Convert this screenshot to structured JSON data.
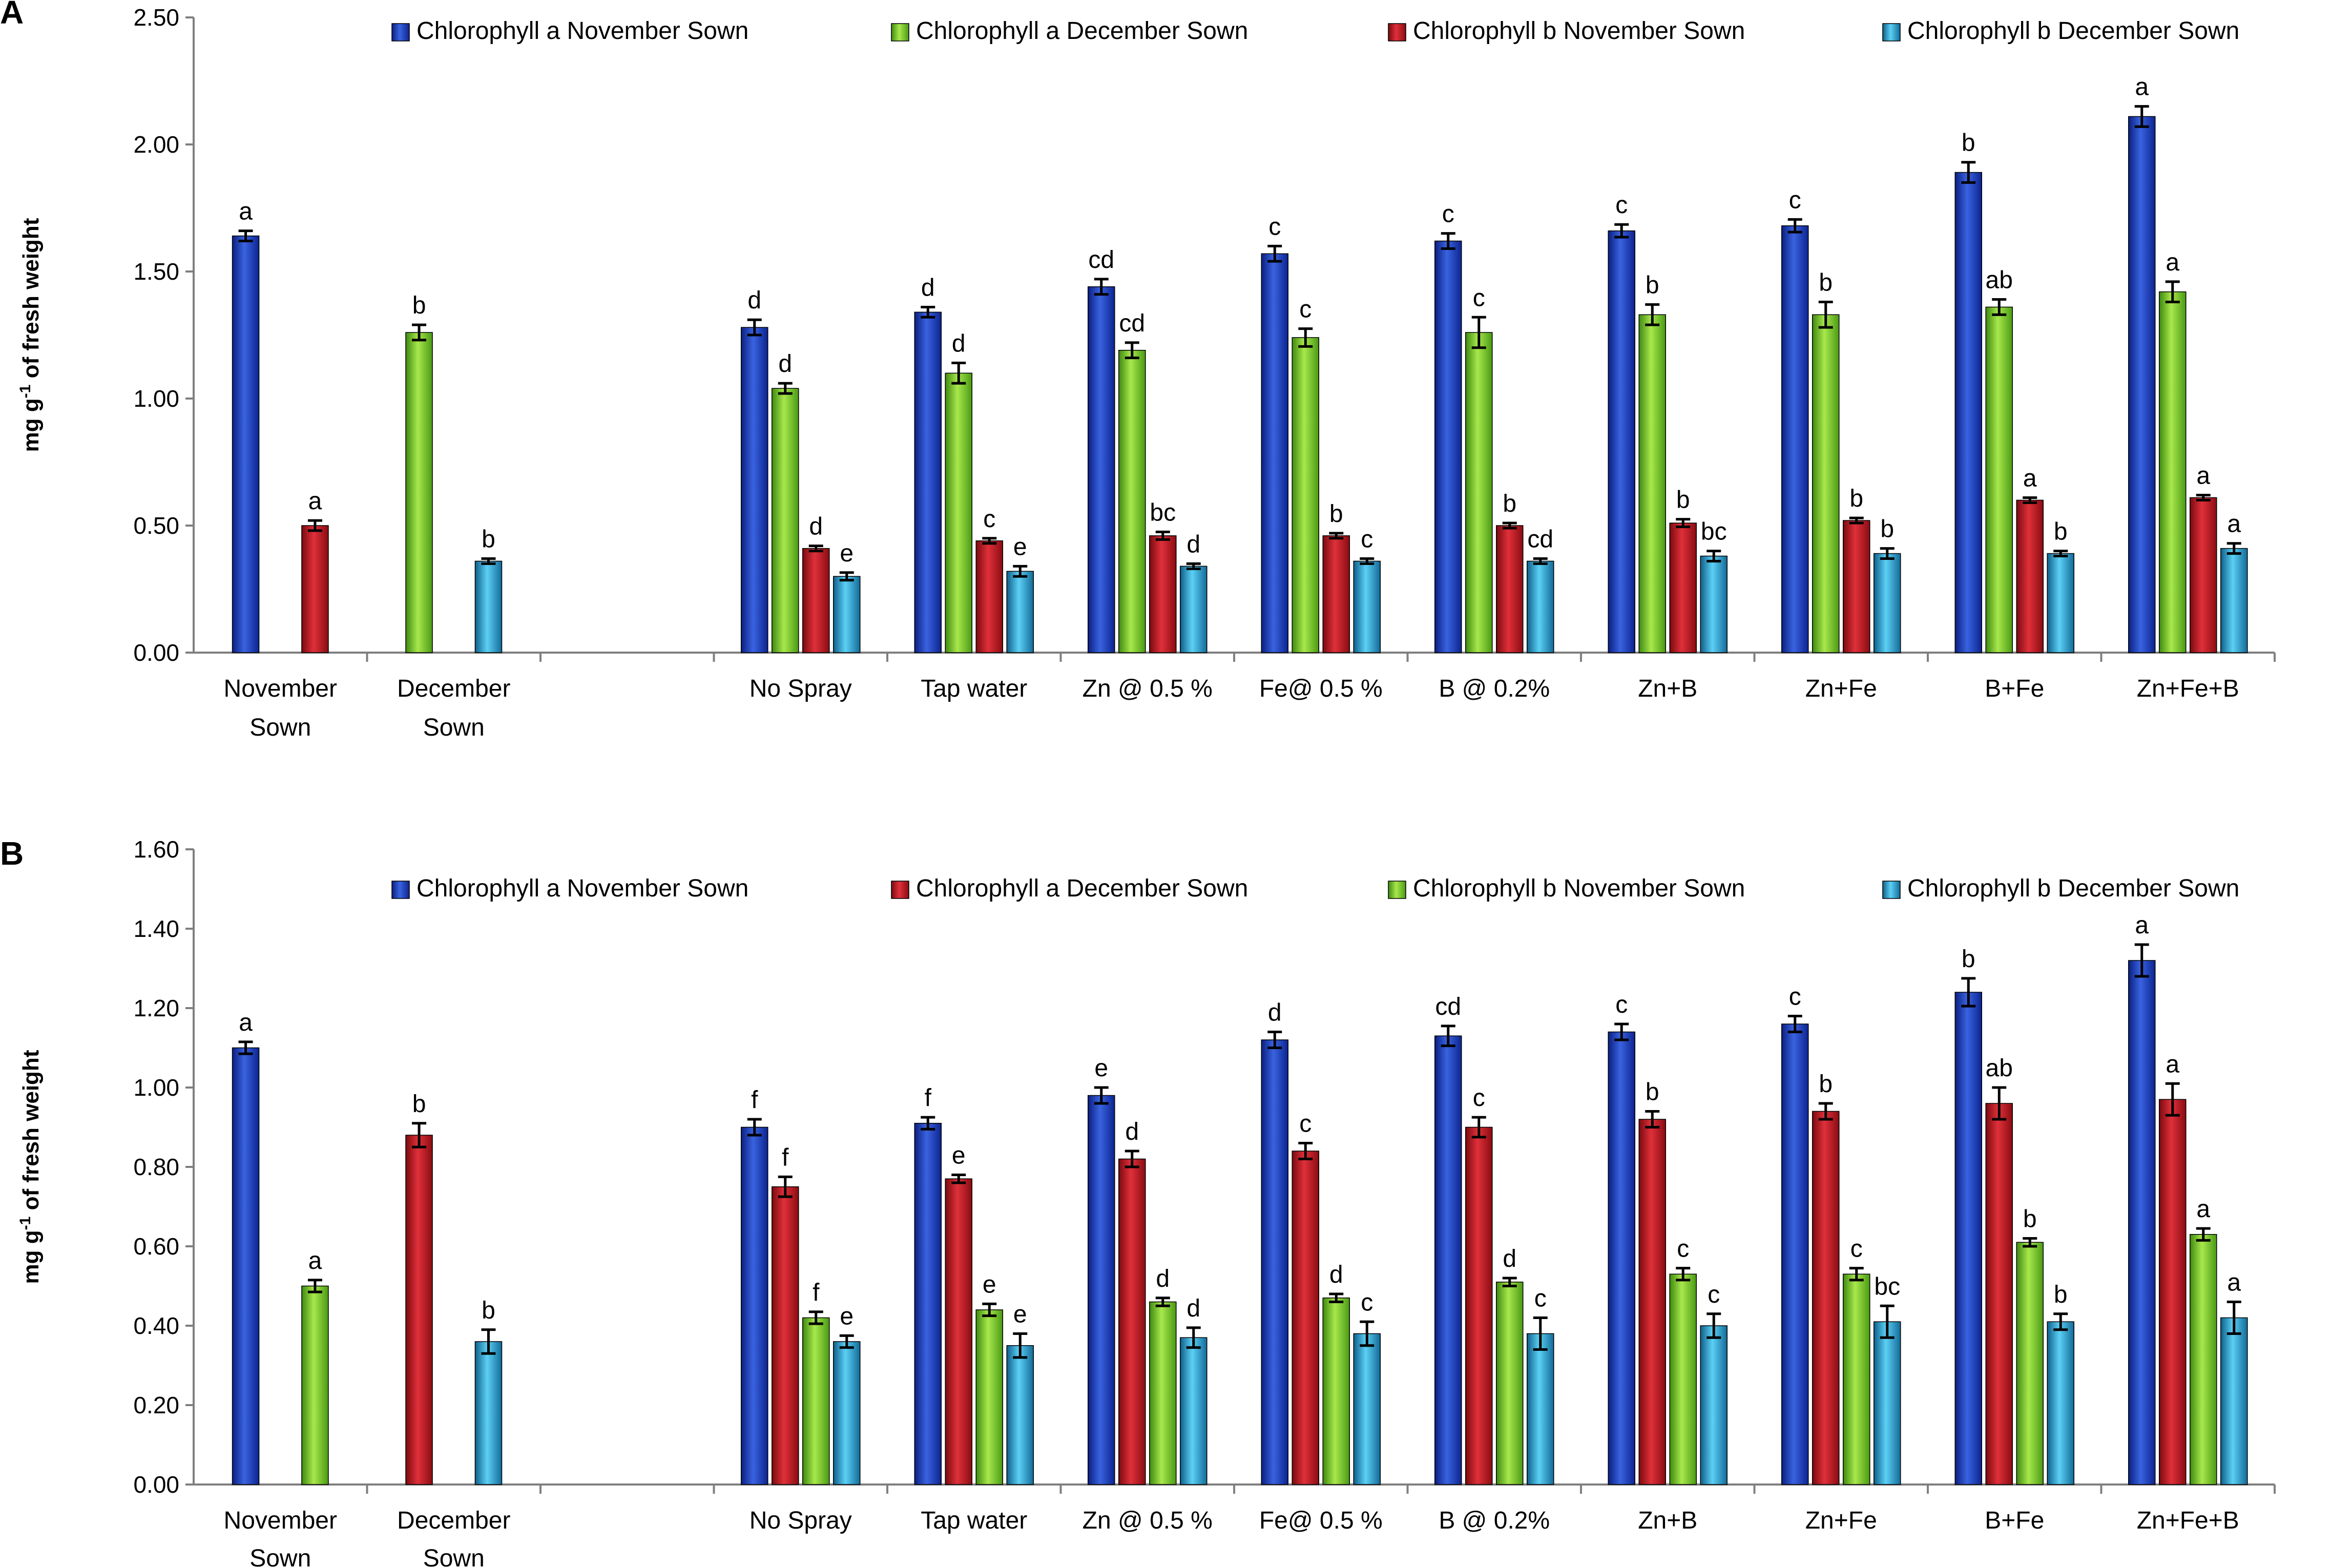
{
  "figure": {
    "colors": {
      "dark_blue": "#1f3fbf",
      "green": "#7cc52f",
      "red": "#c0171f",
      "cyan": "#2ba6d6",
      "axis": "#7f7f7f",
      "text": "#000000"
    }
  },
  "chart_data": [
    {
      "panel": "A",
      "type": "bar",
      "ylabel_main": "mg g",
      "ylabel_sup": "-1",
      "ylabel_rest": " of fresh weight",
      "ylim": [
        0,
        2.5
      ],
      "yticks": [
        0,
        0.5,
        1.0,
        1.5,
        2.0,
        2.5
      ],
      "ytick_labels": [
        "0.00",
        "0.50",
        "1.00",
        "1.50",
        "2.00",
        "2.50"
      ],
      "legend": [
        {
          "name": "Chlorophyll a November Sown",
          "color": "dark_blue"
        },
        {
          "name": "Chlorophyll a December Sown",
          "color": "green"
        },
        {
          "name": "Chlorophyll b November Sown",
          "color": "red"
        },
        {
          "name": "Chlorophyll b December Sown",
          "color": "cyan"
        }
      ],
      "categories": [
        {
          "label": [
            "November",
            "Sown"
          ]
        },
        {
          "label": [
            "December",
            "Sown"
          ]
        },
        {
          "label": [
            ""
          ]
        },
        {
          "label": [
            "No Spray"
          ]
        },
        {
          "label": [
            "Tap water"
          ]
        },
        {
          "label": [
            "Zn @ 0.5 %"
          ]
        },
        {
          "label": [
            "Fe@ 0.5 %"
          ]
        },
        {
          "label": [
            "B @ 0.2%"
          ]
        },
        {
          "label": [
            "Zn+B"
          ]
        },
        {
          "label": [
            "Zn+Fe"
          ]
        },
        {
          "label": [
            "B+Fe"
          ]
        },
        {
          "label": [
            "Zn+Fe+B"
          ]
        }
      ],
      "series": [
        {
          "name": "Chlorophyll a November Sown",
          "color": "dark_blue",
          "values": [
            1.64,
            null,
            null,
            1.28,
            1.34,
            1.44,
            1.57,
            1.62,
            1.66,
            1.68,
            1.89,
            2.11
          ],
          "errors": [
            0.02,
            null,
            null,
            0.03,
            0.02,
            0.03,
            0.03,
            0.03,
            0.025,
            0.025,
            0.04,
            0.04
          ],
          "sig": [
            "a",
            "",
            "",
            "d",
            "d",
            "cd",
            "c",
            "c",
            "c",
            "c",
            "b",
            "a"
          ]
        },
        {
          "name": "Chlorophyll a December Sown",
          "color": "green",
          "values": [
            null,
            1.26,
            null,
            1.04,
            1.1,
            1.19,
            1.24,
            1.26,
            1.33,
            1.33,
            1.36,
            1.42
          ],
          "errors": [
            null,
            0.03,
            null,
            0.02,
            0.04,
            0.03,
            0.035,
            0.06,
            0.04,
            0.05,
            0.03,
            0.04
          ],
          "sig": [
            "",
            "b",
            "",
            "d",
            "d",
            "cd",
            "c",
            "c",
            "b",
            "b",
            "ab",
            "a"
          ]
        },
        {
          "name": "Chlorophyll b November Sown",
          "color": "red",
          "values": [
            0.5,
            null,
            null,
            0.41,
            0.44,
            0.46,
            0.46,
            0.5,
            0.51,
            0.52,
            0.6,
            0.61
          ],
          "errors": [
            0.02,
            null,
            null,
            0.01,
            0.01,
            0.015,
            0.01,
            0.01,
            0.015,
            0.01,
            0.01,
            0.01
          ],
          "sig": [
            "a",
            "",
            "",
            "d",
            "c",
            "bc",
            "b",
            "b",
            "b",
            "b",
            "a",
            "a"
          ]
        },
        {
          "name": "Chlorophyll b December Sown",
          "color": "cyan",
          "values": [
            null,
            0.36,
            null,
            0.3,
            0.32,
            0.34,
            0.36,
            0.36,
            0.38,
            0.39,
            0.39,
            0.41
          ],
          "errors": [
            null,
            0.01,
            null,
            0.015,
            0.02,
            0.01,
            0.01,
            0.01,
            0.02,
            0.02,
            0.01,
            0.02
          ],
          "sig": [
            "",
            "b",
            "",
            "e",
            "e",
            "d",
            "c",
            "cd",
            "bc",
            "b",
            "b",
            "a"
          ]
        }
      ]
    },
    {
      "panel": "B",
      "type": "bar",
      "ylabel_main": "mg g",
      "ylabel_sup": "-1",
      "ylabel_rest": " of fresh weight",
      "ylim": [
        0,
        1.6
      ],
      "yticks": [
        0,
        0.2,
        0.4,
        0.6,
        0.8,
        1.0,
        1.2,
        1.4,
        1.6
      ],
      "ytick_labels": [
        "0.00",
        "0.20",
        "0.40",
        "0.60",
        "0.80",
        "1.00",
        "1.20",
        "1.40",
        "1.60"
      ],
      "legend": [
        {
          "name": "Chlorophyll a November Sown",
          "color": "dark_blue"
        },
        {
          "name": "Chlorophyll a December Sown",
          "color": "red"
        },
        {
          "name": "Chlorophyll b November Sown",
          "color": "green"
        },
        {
          "name": "Chlorophyll b December Sown",
          "color": "cyan"
        }
      ],
      "categories": [
        {
          "label": [
            "November",
            "Sown"
          ]
        },
        {
          "label": [
            "December",
            "Sown"
          ]
        },
        {
          "label": [
            ""
          ]
        },
        {
          "label": [
            "No Spray"
          ]
        },
        {
          "label": [
            "Tap water"
          ]
        },
        {
          "label": [
            "Zn @ 0.5 %"
          ]
        },
        {
          "label": [
            "Fe@ 0.5 %"
          ]
        },
        {
          "label": [
            "B @ 0.2%"
          ]
        },
        {
          "label": [
            "Zn+B"
          ]
        },
        {
          "label": [
            "Zn+Fe"
          ]
        },
        {
          "label": [
            "B+Fe"
          ]
        },
        {
          "label": [
            "Zn+Fe+B"
          ]
        }
      ],
      "series": [
        {
          "name": "Chlorophyll a November Sown",
          "color": "dark_blue",
          "values": [
            1.1,
            null,
            null,
            0.9,
            0.91,
            0.98,
            1.12,
            1.13,
            1.14,
            1.16,
            1.24,
            1.32
          ],
          "errors": [
            0.015,
            null,
            null,
            0.02,
            0.015,
            0.02,
            0.02,
            0.025,
            0.02,
            0.02,
            0.035,
            0.04
          ],
          "sig": [
            "a",
            "",
            "",
            "f",
            "f",
            "e",
            "d",
            "cd",
            "c",
            "c",
            "b",
            "a"
          ]
        },
        {
          "name": "Chlorophyll a December Sown",
          "color": "red",
          "values": [
            null,
            0.88,
            null,
            0.75,
            0.77,
            0.82,
            0.84,
            0.9,
            0.92,
            0.94,
            0.96,
            0.97
          ],
          "errors": [
            null,
            0.03,
            null,
            0.025,
            0.01,
            0.02,
            0.02,
            0.025,
            0.02,
            0.02,
            0.04,
            0.04
          ],
          "sig": [
            "",
            "b",
            "",
            "f",
            "e",
            "d",
            "c",
            "c",
            "b",
            "b",
            "ab",
            "a"
          ]
        },
        {
          "name": "Chlorophyll b November Sown",
          "color": "green",
          "values": [
            0.5,
            null,
            null,
            0.42,
            0.44,
            0.46,
            0.47,
            0.51,
            0.53,
            0.53,
            0.61,
            0.63
          ],
          "errors": [
            0.015,
            null,
            null,
            0.015,
            0.015,
            0.01,
            0.01,
            0.01,
            0.015,
            0.015,
            0.01,
            0.015
          ],
          "sig": [
            "a",
            "",
            "",
            "f",
            "e",
            "d",
            "d",
            "d",
            "c",
            "c",
            "b",
            "a"
          ]
        },
        {
          "name": "Chlorophyll b December Sown",
          "color": "cyan",
          "values": [
            null,
            0.36,
            null,
            0.36,
            0.35,
            0.37,
            0.38,
            0.38,
            0.4,
            0.41,
            0.41,
            0.42
          ],
          "errors": [
            null,
            0.03,
            null,
            0.015,
            0.03,
            0.025,
            0.03,
            0.04,
            0.03,
            0.04,
            0.02,
            0.04
          ],
          "sig": [
            "",
            "b",
            "",
            "e",
            "e",
            "d",
            "c",
            "c",
            "c",
            "bc",
            "b",
            "a"
          ]
        }
      ]
    }
  ]
}
